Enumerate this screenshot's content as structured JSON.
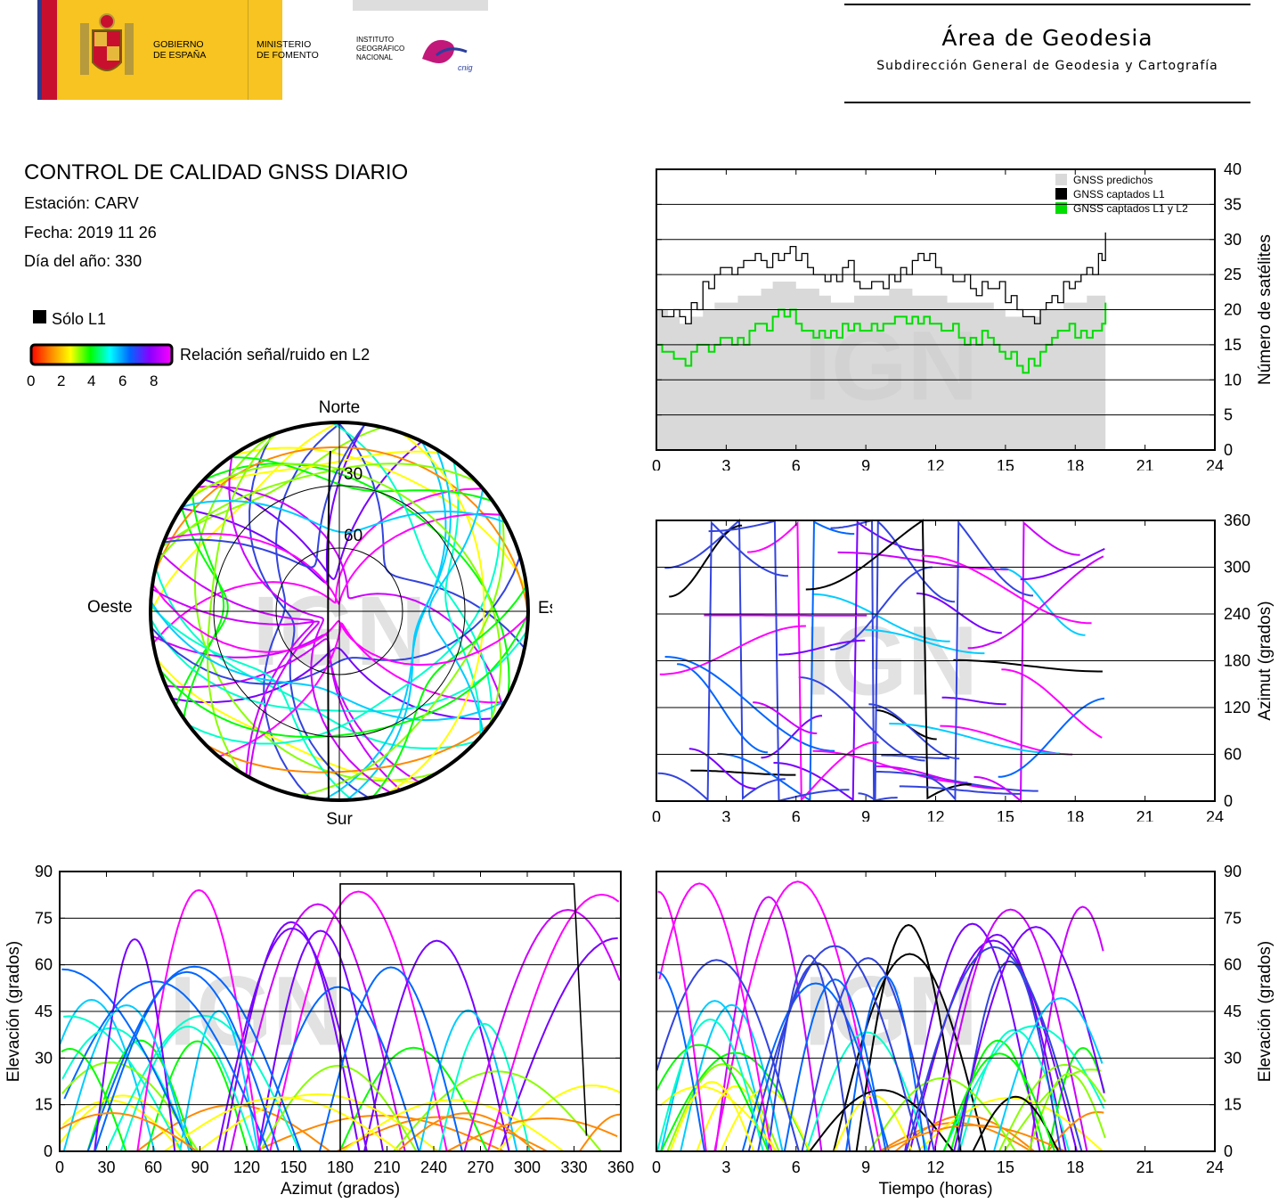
{
  "header": {
    "gov_line1": "GOBIERNO",
    "gov_line2": "DE ESPAÑA",
    "min_line1": "MINISTERIO",
    "min_line2": "DE FOMENTO",
    "ign_line1": "INSTITUTO",
    "ign_line2": "GEOGRÁFICO",
    "ign_line3": "NACIONAL",
    "cnig": "cnig",
    "area_title": "Área de Geodesia",
    "area_subtitle": "Subdirección General de Geodesia y Cartografía"
  },
  "report": {
    "title": "CONTROL DE CALIDAD GNSS DIARIO",
    "station": "Estación: CARV",
    "date": "Fecha: 2019 11 26",
    "doy": "Día del año: 330"
  },
  "legend": {
    "l1_only": "Sólo L1",
    "snr_label": "Relación señal/ruido en L2",
    "snr_ticks": [
      "0",
      "2",
      "4",
      "6",
      "8"
    ]
  },
  "watermark": "IGN",
  "colors": {
    "predicted": "#d9d9d9",
    "captured_l1": "#000000",
    "captured_l1l2": "#00dd00",
    "l1_only": "#000000"
  },
  "chart_data": [
    {
      "id": "satellite-count",
      "type": "area",
      "x_ticks": [
        "0",
        "3",
        "6",
        "9",
        "12",
        "15",
        "18",
        "21",
        "24"
      ],
      "y_ticks": [
        "0",
        "5",
        "10",
        "15",
        "20",
        "25",
        "30",
        "35",
        "40"
      ],
      "ylabel": "Número de satélites",
      "xlim": [
        0,
        24
      ],
      "ylim": [
        0,
        40
      ],
      "grid": "horizontal",
      "legend_position": "top-right",
      "x": [
        0,
        0.5,
        1,
        1.5,
        2,
        2.5,
        3,
        3.5,
        4,
        4.5,
        5,
        5.5,
        6,
        6.5,
        7,
        7.5,
        8,
        8.5,
        9,
        9.5,
        10,
        10.5,
        11,
        11.5,
        12,
        12.5,
        13,
        13.5,
        14,
        14.5,
        15,
        15.5,
        16,
        16.5,
        17,
        17.5,
        18,
        18.5,
        19,
        19.3
      ],
      "series": [
        {
          "name": "GNSS predichos",
          "values": [
            20,
            19,
            18,
            19,
            20,
            21,
            21,
            22,
            22,
            23,
            24,
            24,
            23,
            23,
            22,
            21,
            21,
            22,
            22,
            22,
            23,
            23,
            22,
            22,
            22,
            21,
            21,
            21,
            21,
            20,
            19,
            19,
            19,
            20,
            20,
            21,
            21,
            22,
            22,
            24
          ]
        },
        {
          "name": "GNSS captados L1",
          "values": [
            20,
            19,
            19,
            21,
            24,
            25,
            26,
            26,
            27,
            27,
            28,
            28,
            27,
            26,
            25,
            25,
            26,
            24,
            23,
            24,
            25,
            26,
            27,
            27,
            26,
            25,
            24,
            23,
            24,
            23,
            21,
            20,
            19,
            20,
            22,
            24,
            24,
            26,
            28,
            30
          ]
        },
        {
          "name": "GNSS captados L1 y L2",
          "values": [
            15,
            14,
            13,
            14,
            15,
            15,
            16,
            16,
            17,
            18,
            19,
            19,
            18,
            17,
            17,
            17,
            18,
            18,
            17,
            17,
            18,
            19,
            19,
            19,
            18,
            17,
            16,
            16,
            17,
            15,
            13,
            12,
            13,
            14,
            16,
            17,
            16,
            16,
            17,
            20
          ]
        }
      ]
    },
    {
      "id": "azimuth-time",
      "type": "scatter",
      "x_ticks": [
        "0",
        "3",
        "6",
        "9",
        "12",
        "15",
        "18",
        "21",
        "24"
      ],
      "y_ticks": [
        "0",
        "60",
        "120",
        "180",
        "240",
        "300",
        "360"
      ],
      "ylabel": "Azimut (grados)",
      "xlim": [
        0,
        24
      ],
      "ylim": [
        0,
        360
      ]
    },
    {
      "id": "elevation-azimuth",
      "type": "scatter",
      "x_ticks": [
        "0",
        "30",
        "60",
        "90",
        "120",
        "150",
        "180",
        "210",
        "240",
        "270",
        "300",
        "330",
        "360"
      ],
      "y_ticks": [
        "0",
        "15",
        "30",
        "45",
        "60",
        "75",
        "90"
      ],
      "xlabel": "Azimut (grados)",
      "ylabel": "Elevación (grados)",
      "xlim": [
        0,
        360
      ],
      "ylim": [
        0,
        90
      ]
    },
    {
      "id": "elevation-time",
      "type": "scatter",
      "x_ticks": [
        "0",
        "3",
        "6",
        "9",
        "12",
        "15",
        "18",
        "21",
        "24"
      ],
      "y_ticks": [
        "0",
        "15",
        "30",
        "45",
        "60",
        "75",
        "90"
      ],
      "xlabel": "Tiempo (horas)",
      "ylabel": "Elevación (grados)",
      "xlim": [
        0,
        24
      ],
      "ylim": [
        0,
        90
      ]
    },
    {
      "id": "skyplot",
      "type": "scatter",
      "directions": {
        "north": "Norte",
        "south": "Sur",
        "east": "Este",
        "west": "Oeste"
      },
      "ring_labels": [
        "30",
        "60"
      ]
    }
  ]
}
